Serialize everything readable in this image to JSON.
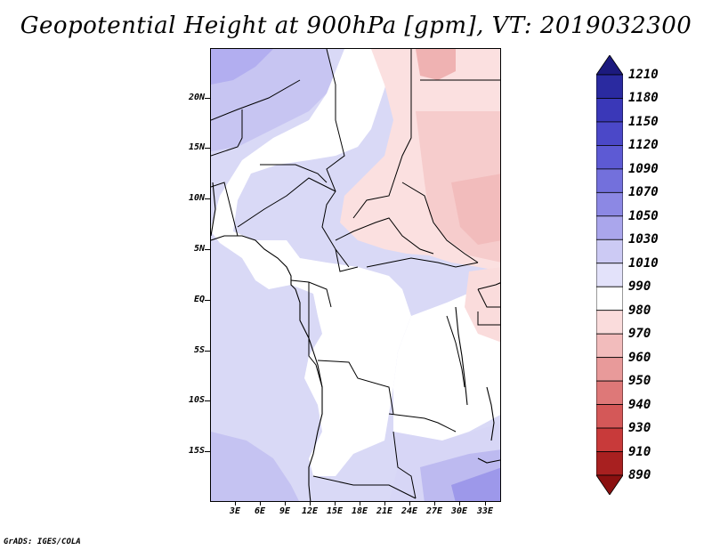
{
  "title": "Geopotential Height at 900hPa [gpm], VT: 2019032300",
  "credit": "GrADS: IGES/COLA",
  "lat_labels": [
    "20N",
    "15N",
    "10N",
    "5N",
    "EQ",
    "5S",
    "10S",
    "15S"
  ],
  "lon_labels": [
    "3E",
    "6E",
    "9E",
    "12E",
    "15E",
    "18E",
    "21E",
    "24E",
    "27E",
    "30E",
    "33E"
  ],
  "colorbar": {
    "labels": [
      "1210",
      "1180",
      "1150",
      "1120",
      "1090",
      "1070",
      "1050",
      "1030",
      "1010",
      "990",
      "980",
      "970",
      "960",
      "950",
      "940",
      "930",
      "910",
      "890"
    ],
    "colors": [
      "#1c1a7e",
      "#2a2aa0",
      "#3a38b8",
      "#4b48c8",
      "#5d5ad4",
      "#7370dc",
      "#8c88e4",
      "#aaa6ec",
      "#cccaf4",
      "#e3e2fa",
      "#ffffff",
      "#fadcdc",
      "#f2bcbc",
      "#e89a9a",
      "#de7878",
      "#d45858",
      "#c83a3a",
      "#a82020",
      "#8a1010"
    ]
  },
  "colors": {
    "ocean": "#d7d8f6",
    "land_low": "#ffffff",
    "blue_light": "#e3e3f9",
    "blue_mid": "#c5c4f3",
    "blue_strong": "#aaa6ec",
    "red_light": "#fbe4e4",
    "red_mid": "#f5caca",
    "red_strong": "#ee9f9f"
  }
}
